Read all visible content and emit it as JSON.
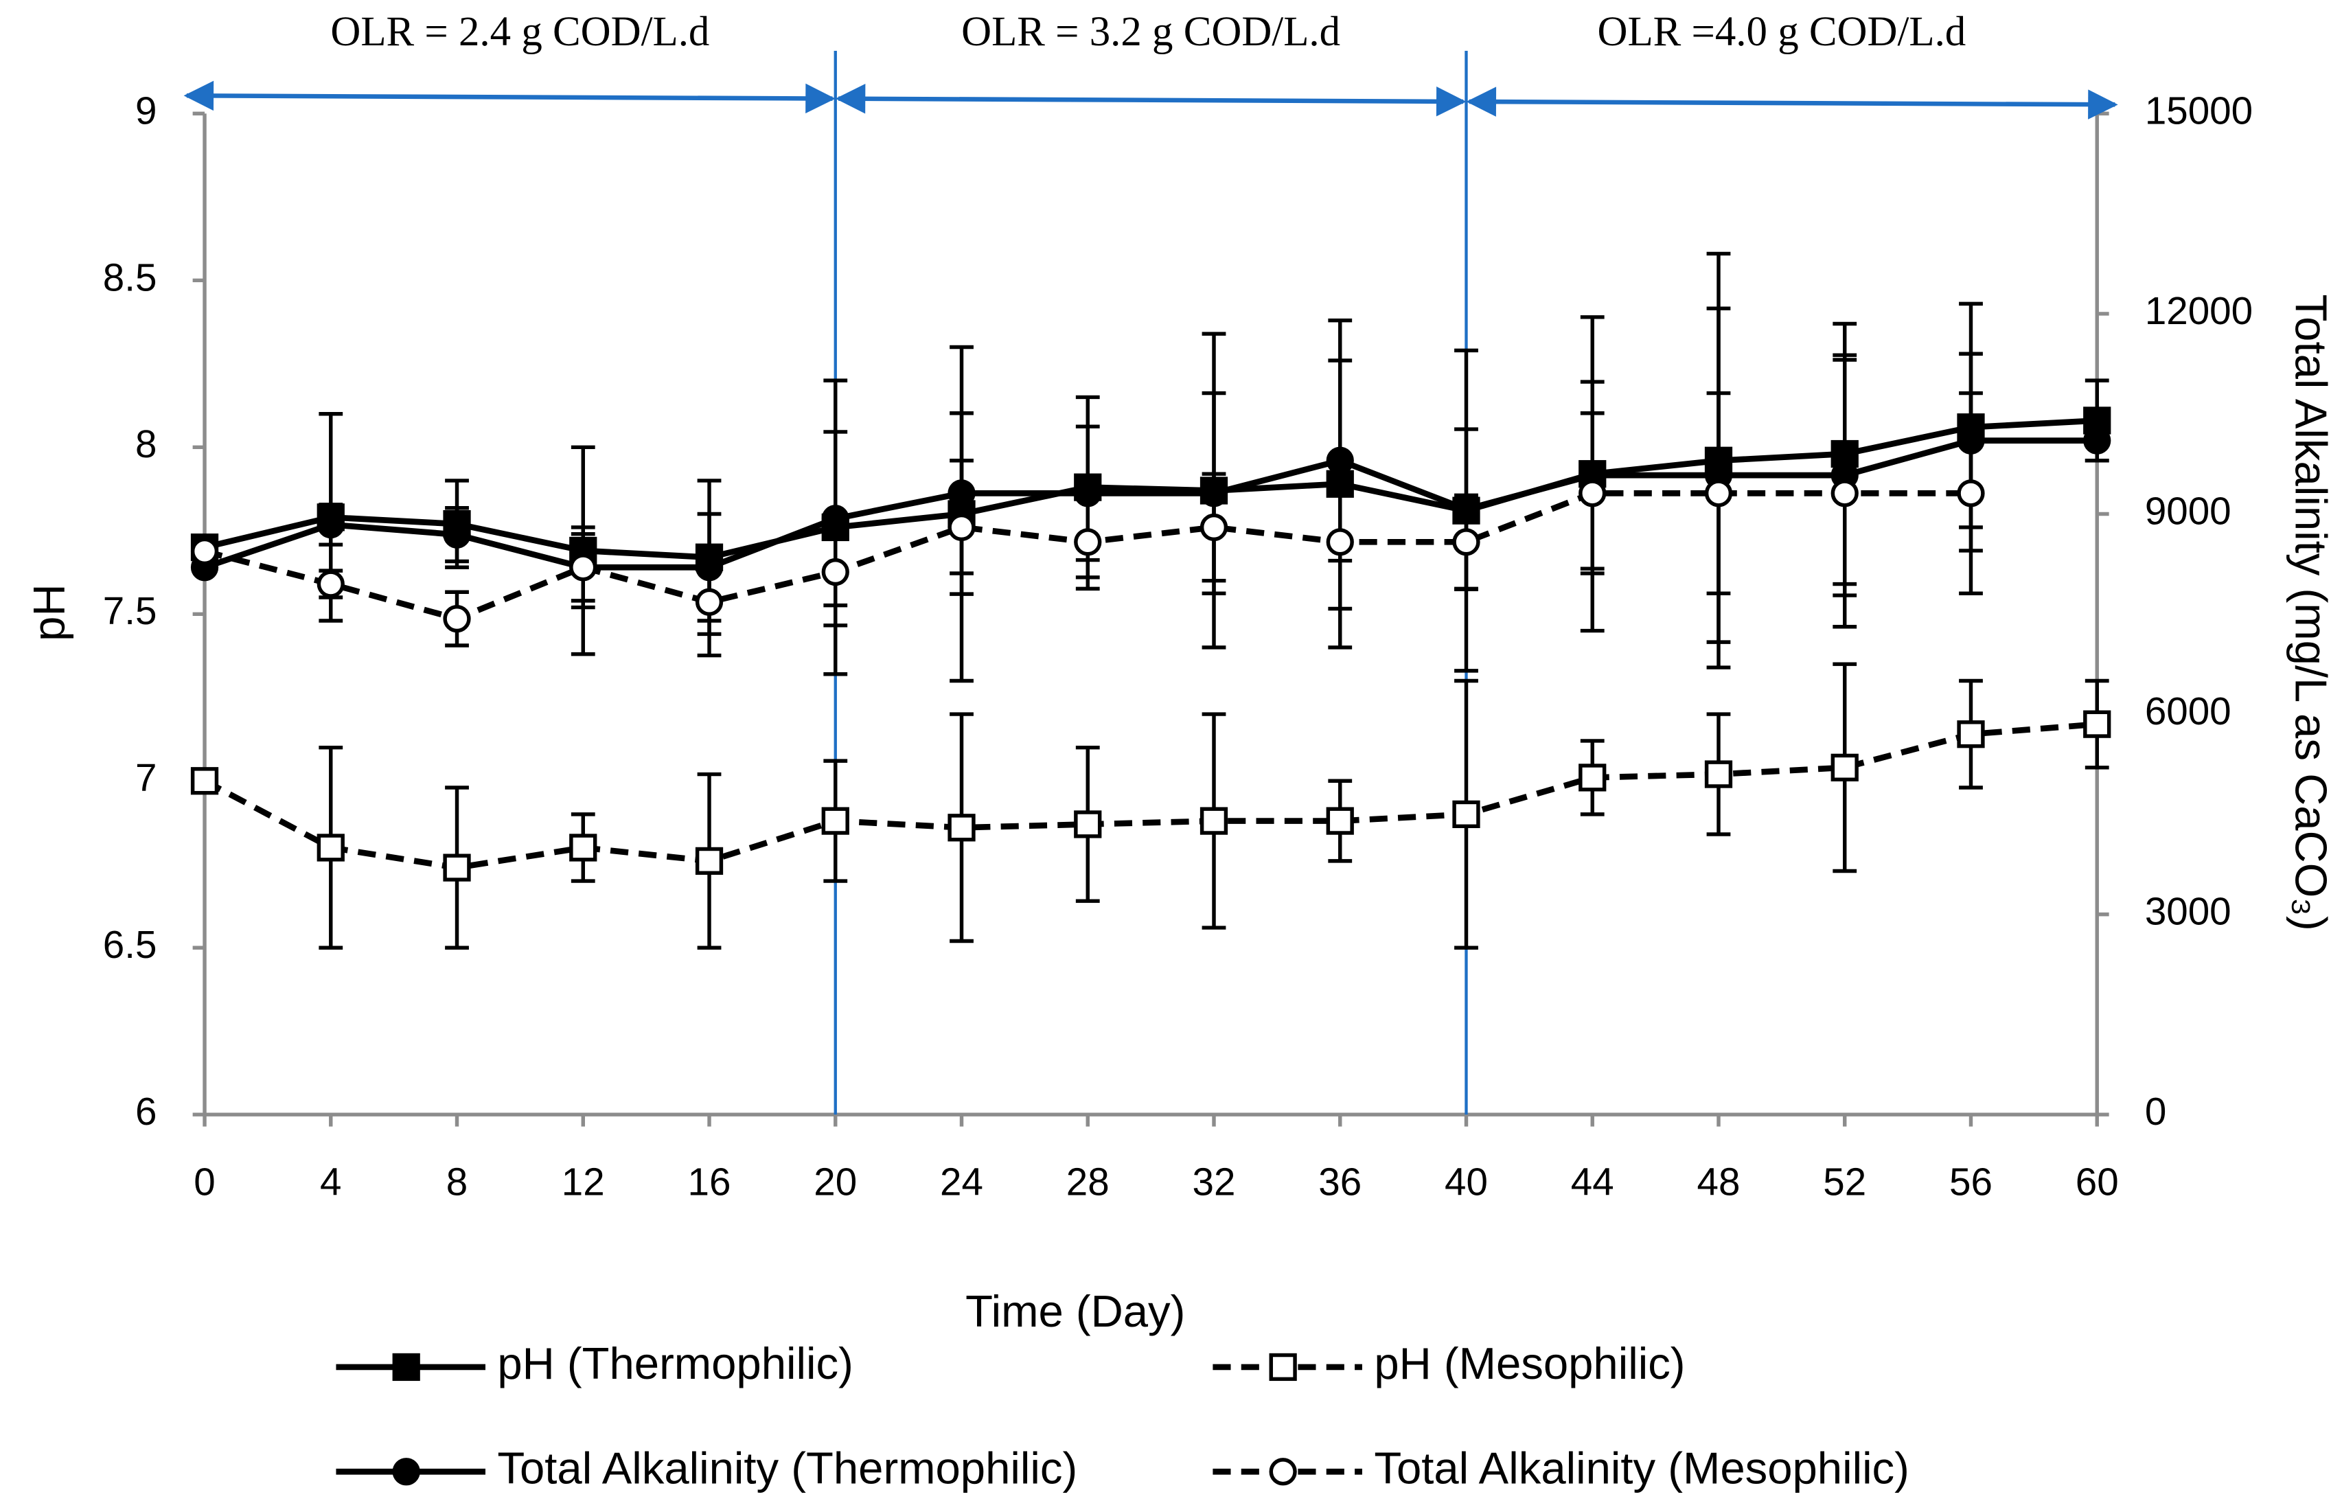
{
  "chart_data": {
    "type": "line",
    "xlabel": "Time  (Day)",
    "ylabel": "pH",
    "y2label": "Total Alkalinity (mg/L as CaCO₃)",
    "x": [
      0,
      4,
      8,
      12,
      16,
      20,
      24,
      28,
      32,
      36,
      40,
      44,
      48,
      52,
      56,
      60
    ],
    "xlim": [
      0,
      60
    ],
    "xticks": [
      0,
      4,
      8,
      12,
      16,
      20,
      24,
      28,
      32,
      36,
      40,
      44,
      48,
      52,
      56,
      60
    ],
    "ylim": [
      6,
      9
    ],
    "yticks": [
      6,
      6.5,
      7,
      7.5,
      8,
      8.5,
      9
    ],
    "y2lim": [
      0,
      15000
    ],
    "y2ticks": [
      0,
      3000,
      6000,
      9000,
      12000,
      15000
    ],
    "grid": false,
    "region_color": "#1f6fc5",
    "regions": [
      {
        "label": "OLR = 2.4 g COD/L.d",
        "start": 0,
        "end": 20
      },
      {
        "label": "OLR = 3.2 g COD/L.d",
        "start": 20,
        "end": 40
      },
      {
        "label": "OLR =4.0 g COD/L.d",
        "start": 40,
        "end": 60
      }
    ],
    "series": [
      {
        "name": "pH (Thermophilic)",
        "color": "#000000",
        "marker": "square",
        "filled": true,
        "dashed": false,
        "axis": "y",
        "values": [
          7.7,
          7.79,
          7.77,
          7.69,
          7.67,
          7.76,
          7.8,
          7.88,
          7.87,
          7.89,
          7.81,
          7.92,
          7.96,
          7.98,
          8.06,
          8.08
        ],
        "errors": [
          0,
          0.31,
          0.13,
          0.31,
          0.23,
          0.44,
          0.5,
          0.27,
          0.47,
          0.49,
          0.48,
          0.47,
          0.62,
          0.39,
          0.37,
          0.12
        ]
      },
      {
        "name": "pH (Mesophilic)",
        "color": "#000000",
        "marker": "square",
        "filled": false,
        "dashed": true,
        "axis": "y",
        "values": [
          7.0,
          6.8,
          6.74,
          6.8,
          6.76,
          6.88,
          6.86,
          6.87,
          6.88,
          6.88,
          6.9,
          7.01,
          7.02,
          7.04,
          7.14,
          7.17
        ],
        "errors": [
          0,
          0.3,
          0.24,
          0.1,
          0.26,
          0.18,
          0.34,
          0.23,
          0.32,
          0.12,
          0.4,
          0.11,
          0.18,
          0.31,
          0.16,
          0.13
        ]
      },
      {
        "name": "Total Alkalinity (Thermophilic)",
        "color": "#000000",
        "marker": "circle",
        "filled": true,
        "dashed": false,
        "axis": "y2",
        "values": [
          8200,
          8840,
          8690,
          8200,
          8200,
          8930,
          9310,
          9310,
          9310,
          9800,
          9070,
          9580,
          9580,
          9580,
          10100,
          10100
        ],
        "errors": [
          0,
          300,
          400,
          600,
          800,
          1300,
          1200,
          1000,
          1500,
          1500,
          1200,
          1400,
          2500,
          1800,
          1300,
          300
        ]
      },
      {
        "name": "Total Alkalinity (Mesophilic)",
        "color": "#000000",
        "marker": "circle",
        "filled": false,
        "dashed": true,
        "axis": "y2",
        "values": [
          8440,
          7950,
          7430,
          8200,
          7680,
          8130,
          8800,
          8580,
          8800,
          8580,
          8580,
          9310,
          9310,
          9310,
          9310,
          null
        ],
        "errors": [
          0,
          200,
          400,
          500,
          800,
          800,
          1000,
          700,
          800,
          1000,
          700,
          1200,
          1500,
          2000,
          1500,
          null
        ]
      }
    ]
  }
}
